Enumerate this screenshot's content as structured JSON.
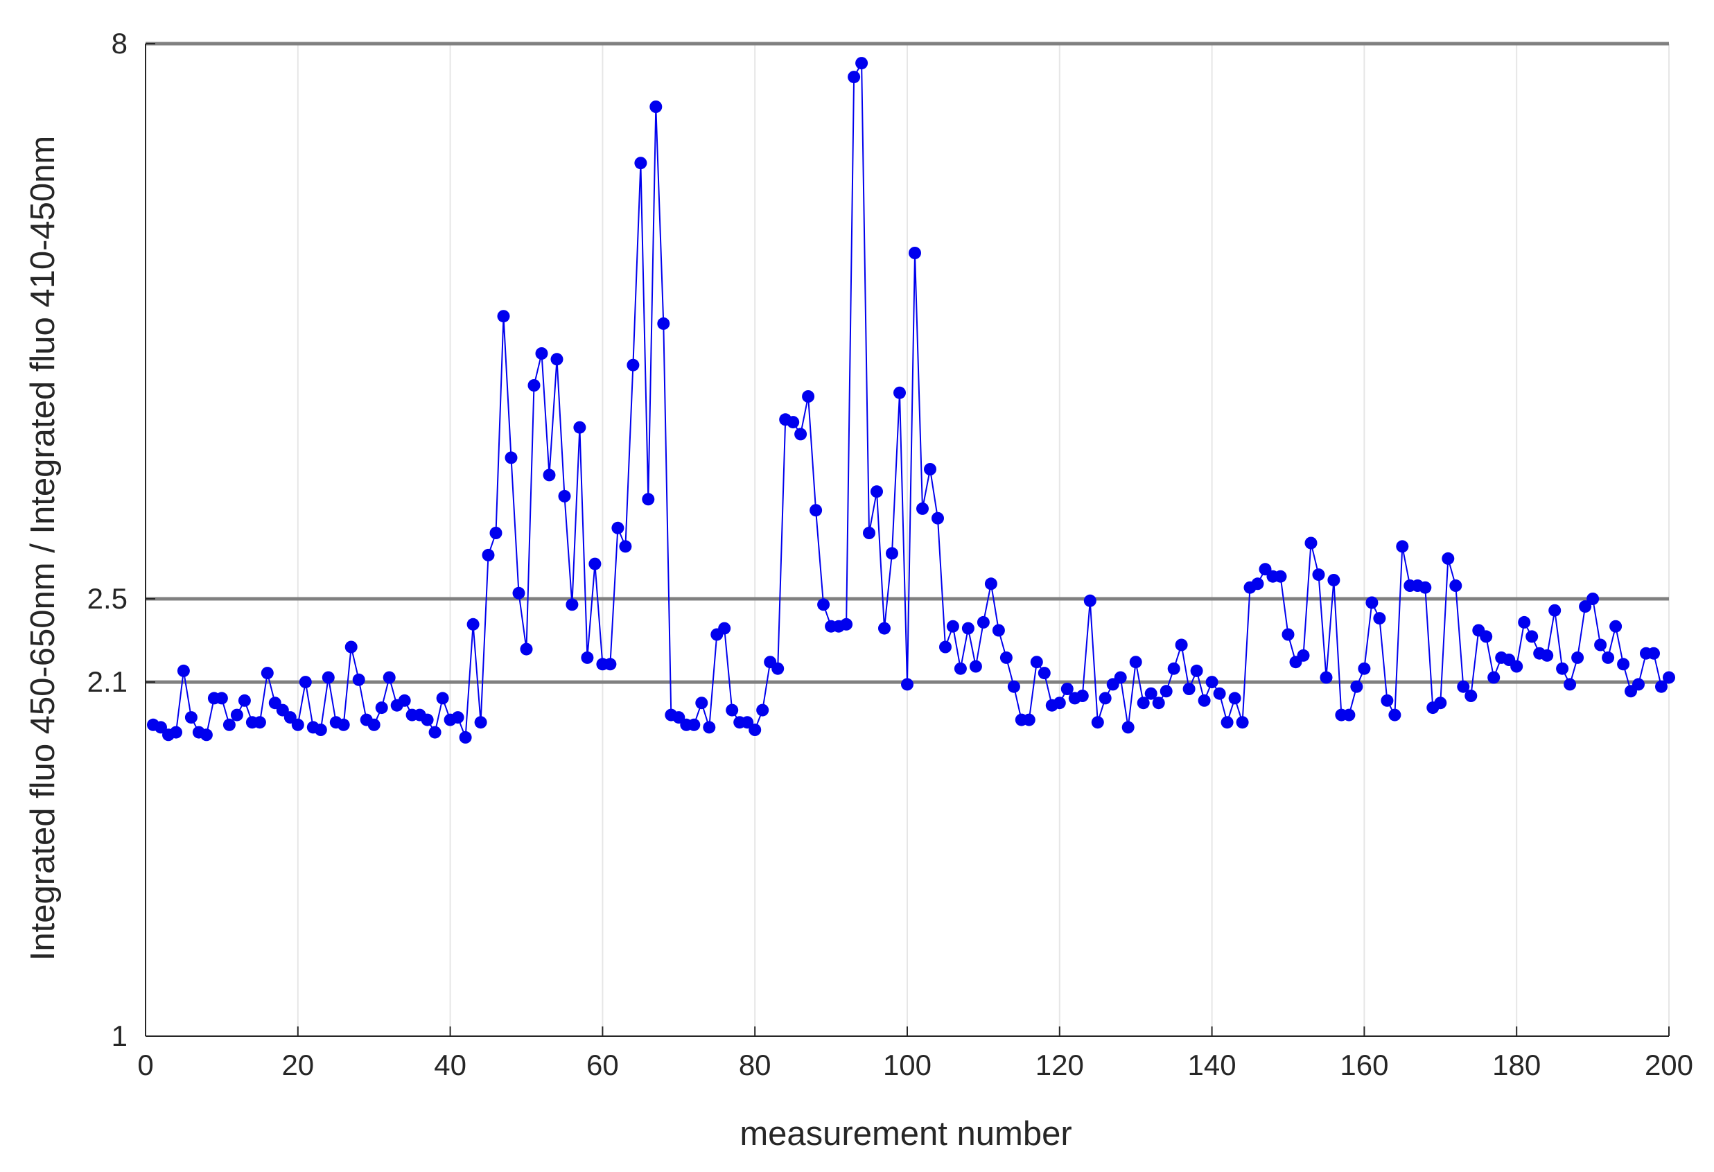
{
  "chart_data": {
    "type": "line",
    "title": "",
    "xlabel": "measurement number",
    "ylabel": "Integrated fluo 450-650nm / Integrated fluo 410-450nm",
    "xlim": [
      0,
      200
    ],
    "ylim": [
      1,
      8
    ],
    "y_scale": "log",
    "x_ticks": [
      0,
      20,
      40,
      60,
      80,
      100,
      120,
      140,
      160,
      180,
      200
    ],
    "y_ticks": [
      1,
      2.1,
      2.5,
      8
    ],
    "x_tick_labels": [
      "0",
      "20",
      "40",
      "60",
      "80",
      "100",
      "120",
      "140",
      "160",
      "180",
      "200"
    ],
    "y_tick_labels": [
      "1",
      "2.1",
      "2.5",
      "8"
    ],
    "grid": "vertical lines at x ticks",
    "reference_lines": [
      2.1,
      2.5,
      8
    ],
    "marker": "filled circle",
    "colors": {
      "series": "#0000ee",
      "reference_line": "#808080",
      "grid": "#e6e6e6",
      "axis": "#262626"
    },
    "series": [
      {
        "x": [
          1,
          2,
          3,
          4,
          5,
          6,
          7,
          8,
          9,
          10,
          11,
          12,
          13,
          14,
          15,
          16,
          17,
          18,
          19,
          20,
          21,
          22,
          23,
          24,
          25,
          26,
          27,
          28,
          29,
          30,
          31,
          32,
          33,
          34,
          35,
          36,
          37,
          38,
          39,
          40,
          41,
          42,
          43,
          44,
          45,
          46,
          47,
          48,
          49,
          50,
          51,
          52,
          53,
          54,
          55,
          56,
          57,
          58,
          59,
          60,
          61,
          62,
          63,
          64,
          65,
          66,
          67,
          68,
          69,
          70,
          71,
          72,
          73,
          74,
          75,
          76,
          77,
          78,
          79,
          80,
          81,
          82,
          83,
          84,
          85,
          86,
          87,
          88,
          89,
          90,
          91,
          92,
          93,
          94,
          95,
          96,
          97,
          98,
          99,
          100,
          101,
          102,
          103,
          104,
          105,
          106,
          107,
          108,
          109,
          110,
          111,
          112,
          113,
          114,
          115,
          116,
          117,
          118,
          119,
          120,
          121,
          122,
          123,
          124,
          125,
          126,
          127,
          128,
          129,
          130,
          131,
          132,
          133,
          134,
          135,
          136,
          137,
          138,
          139,
          140,
          141,
          142,
          143,
          144,
          145,
          146,
          147,
          148,
          149,
          150,
          151,
          152,
          153,
          154,
          155,
          156,
          157,
          158,
          159,
          160,
          161,
          162,
          163,
          164,
          165,
          166,
          167,
          168,
          169,
          170,
          171,
          172,
          173,
          174,
          175,
          176,
          177,
          178,
          179,
          180,
          181,
          182,
          183,
          184,
          185,
          186,
          187,
          188,
          189,
          190,
          191,
          192,
          193,
          194,
          195,
          196,
          197,
          198,
          199,
          200
        ],
        "y": [
          1.92,
          1.91,
          1.88,
          1.89,
          2.15,
          1.95,
          1.89,
          1.88,
          2.03,
          2.03,
          1.92,
          1.96,
          2.02,
          1.93,
          1.93,
          2.14,
          2.01,
          1.98,
          1.95,
          1.92,
          2.1,
          1.91,
          1.9,
          2.12,
          1.93,
          1.92,
          2.26,
          2.11,
          1.94,
          1.92,
          1.99,
          2.12,
          2.0,
          2.02,
          1.96,
          1.96,
          1.94,
          1.89,
          2.03,
          1.94,
          1.95,
          1.87,
          2.37,
          1.93,
          2.74,
          2.87,
          4.52,
          3.36,
          2.53,
          2.25,
          3.91,
          4.18,
          3.24,
          4.13,
          3.1,
          2.47,
          3.58,
          2.21,
          2.69,
          2.18,
          2.18,
          2.9,
          2.79,
          4.08,
          6.23,
          3.08,
          7.01,
          4.45,
          1.96,
          1.95,
          1.92,
          1.92,
          2.01,
          1.91,
          2.32,
          2.35,
          1.98,
          1.93,
          1.93,
          1.9,
          1.98,
          2.19,
          2.16,
          3.64,
          3.62,
          3.53,
          3.82,
          3.01,
          2.47,
          2.36,
          2.36,
          2.37,
          7.46,
          7.68,
          2.87,
          3.13,
          2.35,
          2.75,
          3.85,
          2.09,
          5.16,
          3.02,
          3.28,
          2.96,
          2.26,
          2.36,
          2.16,
          2.35,
          2.17,
          2.38,
          2.58,
          2.34,
          2.21,
          2.08,
          1.94,
          1.94,
          2.19,
          2.14,
          2.0,
          2.01,
          2.07,
          2.03,
          2.04,
          2.49,
          1.93,
          2.03,
          2.09,
          2.12,
          1.91,
          2.19,
          2.01,
          2.05,
          2.01,
          2.06,
          2.16,
          2.27,
          2.07,
          2.15,
          2.02,
          2.1,
          2.05,
          1.93,
          2.03,
          1.93,
          2.56,
          2.58,
          2.66,
          2.62,
          2.62,
          2.32,
          2.19,
          2.22,
          2.81,
          2.63,
          2.12,
          2.6,
          1.96,
          1.96,
          2.08,
          2.16,
          2.48,
          2.4,
          2.02,
          1.96,
          2.79,
          2.57,
          2.57,
          2.56,
          1.99,
          2.01,
          2.72,
          2.57,
          2.08,
          2.04,
          2.34,
          2.31,
          2.12,
          2.21,
          2.2,
          2.17,
          2.38,
          2.31,
          2.23,
          2.22,
          2.44,
          2.16,
          2.09,
          2.21,
          2.46,
          2.5,
          2.27,
          2.21,
          2.36,
          2.18,
          2.06,
          2.09,
          2.23,
          2.23,
          2.08,
          2.12
        ]
      }
    ]
  }
}
